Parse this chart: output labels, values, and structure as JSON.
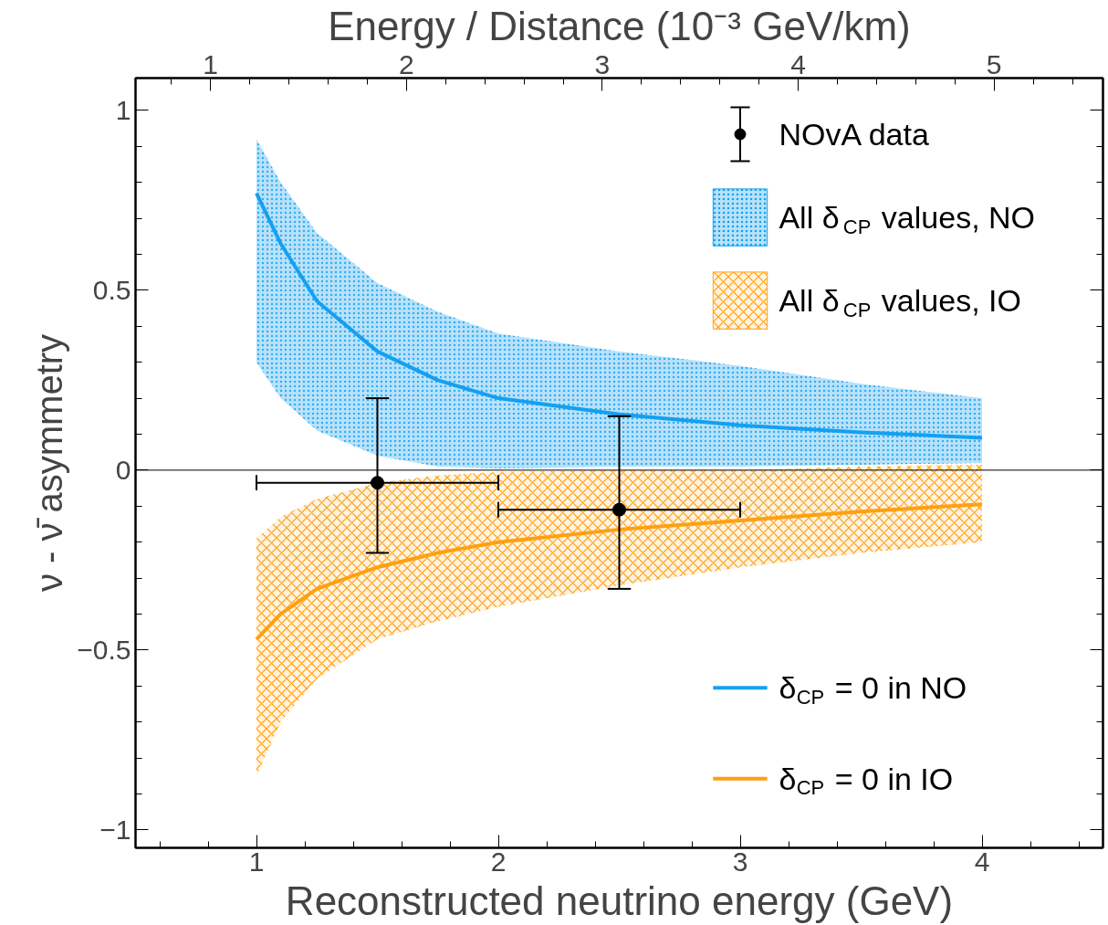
{
  "chart_data": {
    "type": "line",
    "xlabel": "Reconstructed neutrino energy (GeV)",
    "ylabel": "ν - ν̄ asymmetry",
    "x2label": "Energy / Distance (10⁻³ GeV/km)",
    "xlim": [
      0.5,
      4.5
    ],
    "xticks": [
      1,
      2,
      3,
      4
    ],
    "x2lim": [
      0.617,
      5.556
    ],
    "x2ticks": [
      1,
      2,
      3,
      4,
      5
    ],
    "ylim": [
      -1.05,
      1.09
    ],
    "yticks": [
      {
        "value": -1,
        "label": "−1"
      },
      {
        "value": -0.5,
        "label": "−0.5"
      },
      0,
      0.5,
      1
    ],
    "ref_lines": [
      {
        "axis": "y",
        "value": 0,
        "color": "#000000"
      }
    ],
    "legend": "right",
    "series": [
      {
        "type": "scatter",
        "name": "NOvA data",
        "color": "#000000",
        "marker": "circle",
        "x": [
          1.5,
          2.5
        ],
        "values": [
          -0.035,
          -0.11
        ],
        "errors": [
          [
            -0.23,
            0.2
          ],
          [
            -0.33,
            0.15
          ]
        ],
        "xerrors": [
          [
            1,
            2
          ],
          [
            2,
            3
          ]
        ]
      },
      {
        "name": "All δ$_{CP}$ values, NO",
        "color": "#14a0f0",
        "x": [
          1,
          1.1,
          1.25,
          1.5,
          1.75,
          2,
          2.5,
          3,
          3.5,
          4
        ],
        "values": [
          null,
          null,
          null,
          null,
          null,
          null,
          null,
          null,
          null,
          null
        ],
        "lower": [
          0.3,
          0.2,
          0.11,
          0.04,
          0.01,
          0.005,
          0.01,
          0.01,
          0.015,
          0.02
        ],
        "upper": [
          0.92,
          0.8,
          0.66,
          0.52,
          0.44,
          0.38,
          0.33,
          0.29,
          0.24,
          0.2
        ]
      },
      {
        "name": "All δ$_{CP}$ values, IO",
        "color": "#ffa010",
        "x": [
          1,
          1.1,
          1.25,
          1.5,
          1.75,
          2,
          2.5,
          3,
          3.5,
          4
        ],
        "values": [
          null,
          null,
          null,
          null,
          null,
          null,
          null,
          null,
          null,
          null
        ],
        "lower": [
          -0.85,
          -0.7,
          -0.58,
          -0.47,
          -0.42,
          -0.38,
          -0.32,
          -0.27,
          -0.23,
          -0.2
        ],
        "upper": [
          -0.19,
          -0.13,
          -0.08,
          -0.035,
          -0.015,
          -0.005,
          0.0,
          0.0,
          0.01,
          0.015
        ]
      },
      {
        "name": "δ$_{CP}$ = 0 in NO",
        "color": "#14a0f0",
        "x": [
          1,
          1.1,
          1.25,
          1.5,
          1.75,
          2,
          2.5,
          3,
          3.5,
          4
        ],
        "values": [
          0.77,
          0.63,
          0.47,
          0.33,
          0.25,
          0.2,
          0.155,
          0.125,
          0.105,
          0.09
        ]
      },
      {
        "name": "δ$_{CP}$ = 0 in IO",
        "color": "#ffa010",
        "x": [
          1,
          1.1,
          1.25,
          1.5,
          1.75,
          2,
          2.5,
          3,
          3.5,
          4
        ],
        "values": [
          -0.47,
          -0.4,
          -0.33,
          -0.27,
          -0.23,
          -0.2,
          -0.165,
          -0.14,
          -0.115,
          -0.095
        ]
      }
    ]
  }
}
